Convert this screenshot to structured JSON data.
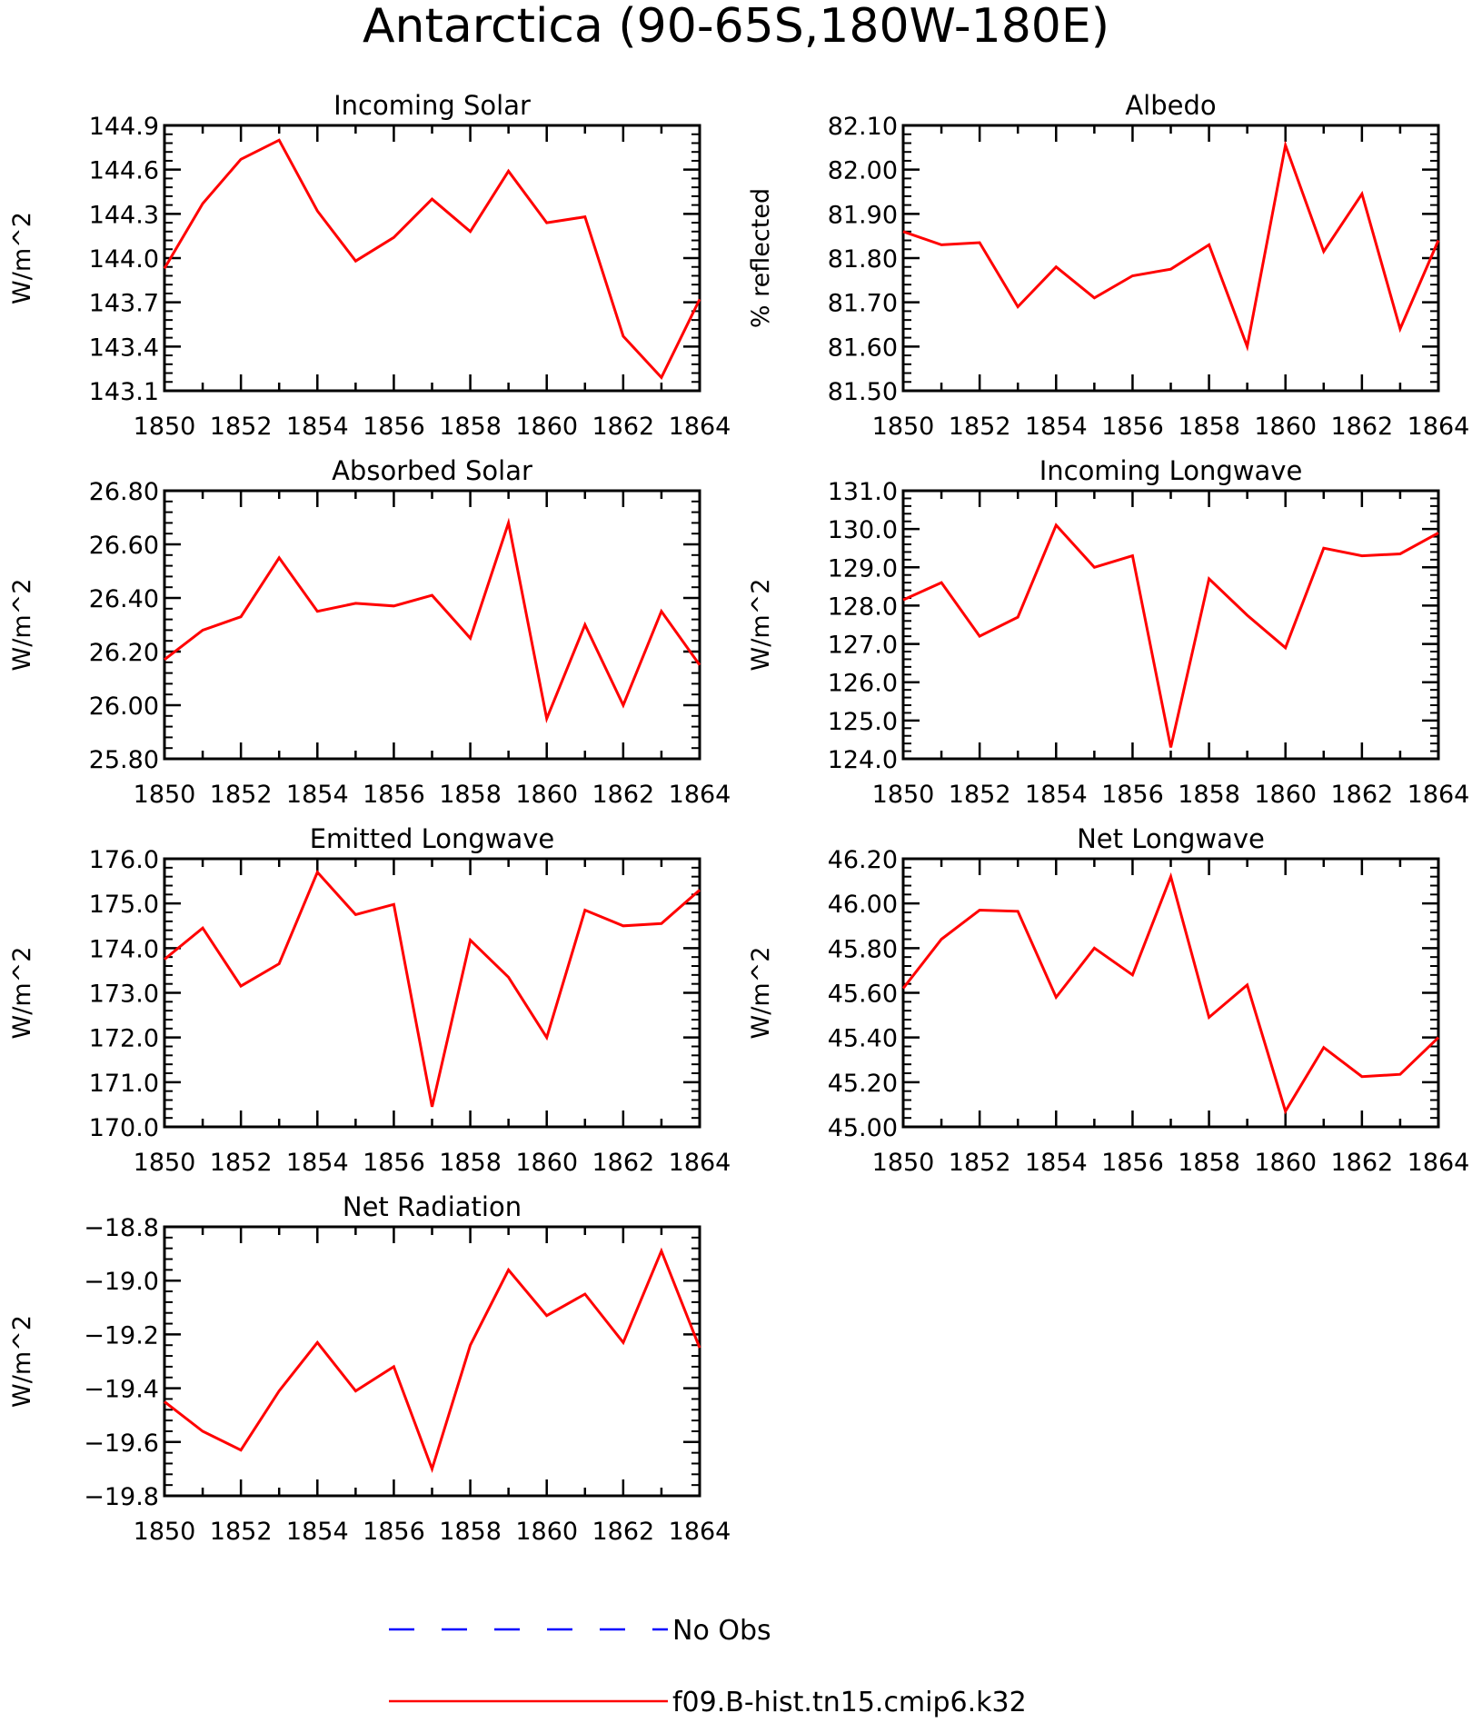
{
  "title": "Antarctica (90-65S,180W-180E)",
  "legend": [
    {
      "label": "No Obs",
      "color": "#0000ff",
      "dashed": true
    },
    {
      "label": "f09.B-hist.tn15.cmip6.k32",
      "color": "#ff0000",
      "dashed": false
    }
  ],
  "chart_data": [
    {
      "type": "line",
      "title": "Incoming Solar",
      "ylabel": "W/m^2",
      "xlim": [
        1850,
        1864
      ],
      "ylim": [
        143.1,
        144.9
      ],
      "xticks": [
        "1850",
        "1852",
        "1854",
        "1856",
        "1858",
        "1860",
        "1862",
        "1864"
      ],
      "yticks": [
        "143.1",
        "143.4",
        "143.7",
        "144.0",
        "144.3",
        "144.6",
        "144.9"
      ],
      "x": [
        1850,
        1851,
        1852,
        1853,
        1854,
        1855,
        1856,
        1857,
        1858,
        1859,
        1860,
        1861,
        1862,
        1863,
        1864
      ],
      "series": [
        {
          "name": "f09.B-hist.tn15.cmip6.k32",
          "color": "#ff0000",
          "values": [
            143.93,
            144.37,
            144.67,
            144.8,
            144.32,
            143.98,
            144.14,
            144.4,
            144.18,
            144.59,
            144.24,
            144.28,
            143.47,
            143.19,
            143.72
          ]
        }
      ]
    },
    {
      "type": "line",
      "title": "Albedo",
      "ylabel": "% reflected",
      "xlim": [
        1850,
        1864
      ],
      "ylim": [
        81.5,
        82.1
      ],
      "xticks": [
        "1850",
        "1852",
        "1854",
        "1856",
        "1858",
        "1860",
        "1862",
        "1864"
      ],
      "yticks": [
        "81.50",
        "81.60",
        "81.70",
        "81.80",
        "81.90",
        "82.00",
        "82.10"
      ],
      "x": [
        1850,
        1851,
        1852,
        1853,
        1854,
        1855,
        1856,
        1857,
        1858,
        1859,
        1860,
        1861,
        1862,
        1863,
        1864
      ],
      "series": [
        {
          "name": "f09.B-hist.tn15.cmip6.k32",
          "color": "#ff0000",
          "values": [
            81.86,
            81.83,
            81.835,
            81.69,
            81.78,
            81.71,
            81.76,
            81.775,
            81.83,
            81.6,
            82.055,
            81.815,
            81.945,
            81.64,
            81.84
          ]
        }
      ]
    },
    {
      "type": "line",
      "title": "Absorbed Solar",
      "ylabel": "W/m^2",
      "xlim": [
        1850,
        1864
      ],
      "ylim": [
        25.8,
        26.8
      ],
      "xticks": [
        "1850",
        "1852",
        "1854",
        "1856",
        "1858",
        "1860",
        "1862",
        "1864"
      ],
      "yticks": [
        "25.80",
        "26.00",
        "26.20",
        "26.40",
        "26.60",
        "26.80"
      ],
      "x": [
        1850,
        1851,
        1852,
        1853,
        1854,
        1855,
        1856,
        1857,
        1858,
        1859,
        1860,
        1861,
        1862,
        1863,
        1864
      ],
      "series": [
        {
          "name": "f09.B-hist.tn15.cmip6.k32",
          "color": "#ff0000",
          "values": [
            26.17,
            26.28,
            26.33,
            26.55,
            26.35,
            26.38,
            26.37,
            26.41,
            26.25,
            26.68,
            25.95,
            26.3,
            26.0,
            26.35,
            26.15
          ]
        }
      ]
    },
    {
      "type": "line",
      "title": "Incoming Longwave",
      "ylabel": "W/m^2",
      "xlim": [
        1850,
        1864
      ],
      "ylim": [
        124.0,
        131.0
      ],
      "xticks": [
        "1850",
        "1852",
        "1854",
        "1856",
        "1858",
        "1860",
        "1862",
        "1864"
      ],
      "yticks": [
        "124.0",
        "125.0",
        "126.0",
        "127.0",
        "128.0",
        "129.0",
        "130.0",
        "131.0"
      ],
      "x": [
        1850,
        1851,
        1852,
        1853,
        1854,
        1855,
        1856,
        1857,
        1858,
        1859,
        1860,
        1861,
        1862,
        1863,
        1864
      ],
      "series": [
        {
          "name": "f09.B-hist.tn15.cmip6.k32",
          "color": "#ff0000",
          "values": [
            128.15,
            128.6,
            127.2,
            127.7,
            130.1,
            129.0,
            129.3,
            124.3,
            128.7,
            127.75,
            126.9,
            129.5,
            129.3,
            129.35,
            129.9
          ]
        }
      ]
    },
    {
      "type": "line",
      "title": "Emitted Longwave",
      "ylabel": "W/m^2",
      "xlim": [
        1850,
        1864
      ],
      "ylim": [
        170.0,
        176.0
      ],
      "xticks": [
        "1850",
        "1852",
        "1854",
        "1856",
        "1858",
        "1860",
        "1862",
        "1864"
      ],
      "yticks": [
        "170.0",
        "171.0",
        "172.0",
        "173.0",
        "174.0",
        "175.0",
        "176.0"
      ],
      "x": [
        1850,
        1851,
        1852,
        1853,
        1854,
        1855,
        1856,
        1857,
        1858,
        1859,
        1860,
        1861,
        1862,
        1863,
        1864
      ],
      "series": [
        {
          "name": "f09.B-hist.tn15.cmip6.k32",
          "color": "#ff0000",
          "values": [
            173.75,
            174.45,
            173.15,
            173.65,
            175.7,
            174.75,
            174.98,
            170.45,
            174.18,
            173.35,
            172.0,
            174.85,
            174.5,
            174.55,
            175.3
          ]
        }
      ]
    },
    {
      "type": "line",
      "title": "Net Longwave",
      "ylabel": "W/m^2",
      "xlim": [
        1850,
        1864
      ],
      "ylim": [
        45.0,
        46.2
      ],
      "xticks": [
        "1850",
        "1852",
        "1854",
        "1856",
        "1858",
        "1860",
        "1862",
        "1864"
      ],
      "yticks": [
        "45.00",
        "45.20",
        "45.40",
        "45.60",
        "45.80",
        "46.00",
        "46.20"
      ],
      "x": [
        1850,
        1851,
        1852,
        1853,
        1854,
        1855,
        1856,
        1857,
        1858,
        1859,
        1860,
        1861,
        1862,
        1863,
        1864
      ],
      "series": [
        {
          "name": "f09.B-hist.tn15.cmip6.k32",
          "color": "#ff0000",
          "values": [
            45.62,
            45.84,
            45.97,
            45.965,
            45.58,
            45.8,
            45.68,
            46.12,
            45.49,
            45.635,
            45.07,
            45.355,
            45.225,
            45.235,
            45.4
          ]
        }
      ]
    },
    {
      "type": "line",
      "title": "Net Radiation",
      "ylabel": "W/m^2",
      "xlim": [
        1850,
        1864
      ],
      "ylim": [
        -19.8,
        -18.8
      ],
      "xticks": [
        "1850",
        "1852",
        "1854",
        "1856",
        "1858",
        "1860",
        "1862",
        "1864"
      ],
      "yticks": [
        "-19.8",
        "-19.6",
        "-19.4",
        "-19.2",
        "-19.0",
        "-18.8"
      ],
      "x": [
        1850,
        1851,
        1852,
        1853,
        1854,
        1855,
        1856,
        1857,
        1858,
        1859,
        1860,
        1861,
        1862,
        1863,
        1864
      ],
      "series": [
        {
          "name": "f09.B-hist.tn15.cmip6.k32",
          "color": "#ff0000",
          "values": [
            -19.45,
            -19.56,
            -19.63,
            -19.41,
            -19.23,
            -19.41,
            -19.32,
            -19.7,
            -19.24,
            -18.96,
            -19.13,
            -19.05,
            -19.23,
            -18.89,
            -19.25
          ]
        }
      ]
    }
  ]
}
